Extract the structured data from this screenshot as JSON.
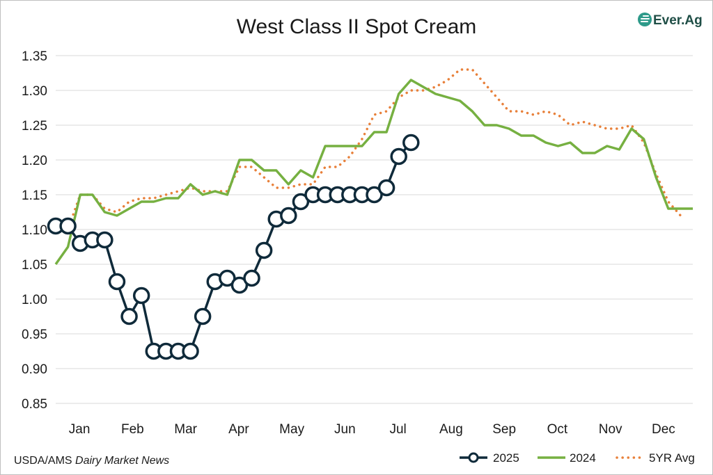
{
  "chart_data": {
    "type": "line",
    "title": "West Class II Spot Cream",
    "source": {
      "prefix": "USDA/AMS ",
      "emphasis": "Dairy Market News"
    },
    "logo": {
      "text": "Ever.Ag",
      "icon": "ever-ag-logo-icon"
    },
    "ylim": [
      0.85,
      1.35
    ],
    "y_ticks": [
      "0.85",
      "0.90",
      "0.95",
      "1.00",
      "1.05",
      "1.10",
      "1.15",
      "1.20",
      "1.25",
      "1.30",
      "1.35"
    ],
    "y_tick_values": [
      0.85,
      0.9,
      0.95,
      1.0,
      1.05,
      1.1,
      1.15,
      1.2,
      1.25,
      1.3,
      1.35
    ],
    "categories": [
      "Jan",
      "Feb",
      "Mar",
      "Apr",
      "May",
      "Jun",
      "Jul",
      "Aug",
      "Sep",
      "Oct",
      "Nov",
      "Dec"
    ],
    "x_domain": [
      0,
      52
    ],
    "grid": "horizontal",
    "legend_position": "bottom-right",
    "series": [
      {
        "name": "2025",
        "style": "line-circle-markers",
        "color": "#0f2a3a",
        "points": [
          [
            0,
            1.105
          ],
          [
            1,
            1.105
          ],
          [
            2,
            1.08
          ],
          [
            3,
            1.085
          ],
          [
            4,
            1.085
          ],
          [
            5,
            1.025
          ],
          [
            6,
            0.975
          ],
          [
            7,
            1.005
          ],
          [
            8,
            0.925
          ],
          [
            9,
            0.925
          ],
          [
            10,
            0.925
          ],
          [
            11,
            0.925
          ],
          [
            12,
            0.975
          ],
          [
            13,
            1.025
          ],
          [
            14,
            1.03
          ],
          [
            15,
            1.02
          ],
          [
            16,
            1.03
          ],
          [
            17,
            1.07
          ],
          [
            18,
            1.115
          ],
          [
            19,
            1.12
          ],
          [
            20,
            1.14
          ],
          [
            21,
            1.15
          ],
          [
            22,
            1.15
          ],
          [
            23,
            1.15
          ],
          [
            24,
            1.15
          ],
          [
            25,
            1.15
          ],
          [
            26,
            1.15
          ],
          [
            27,
            1.16
          ],
          [
            28,
            1.205
          ],
          [
            29,
            1.225
          ]
        ]
      },
      {
        "name": "2024",
        "style": "solid",
        "color": "#76b041",
        "points": [
          [
            0,
            1.05
          ],
          [
            1,
            1.075
          ],
          [
            2,
            1.15
          ],
          [
            3,
            1.15
          ],
          [
            4,
            1.125
          ],
          [
            5,
            1.12
          ],
          [
            6,
            1.13
          ],
          [
            7,
            1.14
          ],
          [
            8,
            1.14
          ],
          [
            9,
            1.145
          ],
          [
            10,
            1.145
          ],
          [
            11,
            1.165
          ],
          [
            12,
            1.15
          ],
          [
            13,
            1.155
          ],
          [
            14,
            1.15
          ],
          [
            15,
            1.2
          ],
          [
            16,
            1.2
          ],
          [
            17,
            1.185
          ],
          [
            18,
            1.185
          ],
          [
            19,
            1.165
          ],
          [
            20,
            1.185
          ],
          [
            21,
            1.175
          ],
          [
            22,
            1.22
          ],
          [
            23,
            1.22
          ],
          [
            24,
            1.22
          ],
          [
            25,
            1.22
          ],
          [
            26,
            1.24
          ],
          [
            27,
            1.24
          ],
          [
            28,
            1.295
          ],
          [
            29,
            1.315
          ],
          [
            30,
            1.305
          ],
          [
            31,
            1.295
          ],
          [
            32,
            1.29
          ],
          [
            33,
            1.285
          ],
          [
            34,
            1.27
          ],
          [
            35,
            1.25
          ],
          [
            36,
            1.25
          ],
          [
            37,
            1.245
          ],
          [
            38,
            1.235
          ],
          [
            39,
            1.235
          ],
          [
            40,
            1.225
          ],
          [
            41,
            1.22
          ],
          [
            42,
            1.225
          ],
          [
            43,
            1.21
          ],
          [
            44,
            1.21
          ],
          [
            45,
            1.22
          ],
          [
            46,
            1.215
          ],
          [
            47,
            1.245
          ],
          [
            48,
            1.23
          ],
          [
            49,
            1.175
          ],
          [
            50,
            1.13
          ],
          [
            51,
            1.13
          ],
          [
            52,
            1.13
          ]
        ]
      },
      {
        "name": "5YR Avg",
        "style": "dotted",
        "color": "#e8803a",
        "points": [
          [
            0,
            1.1
          ],
          [
            1,
            1.1
          ],
          [
            2,
            1.15
          ],
          [
            3,
            1.15
          ],
          [
            4,
            1.13
          ],
          [
            5,
            1.125
          ],
          [
            6,
            1.14
          ],
          [
            7,
            1.145
          ],
          [
            8,
            1.145
          ],
          [
            9,
            1.15
          ],
          [
            10,
            1.155
          ],
          [
            11,
            1.16
          ],
          [
            12,
            1.155
          ],
          [
            13,
            1.155
          ],
          [
            14,
            1.155
          ],
          [
            15,
            1.19
          ],
          [
            16,
            1.19
          ],
          [
            17,
            1.175
          ],
          [
            18,
            1.16
          ],
          [
            19,
            1.16
          ],
          [
            20,
            1.165
          ],
          [
            21,
            1.165
          ],
          [
            22,
            1.19
          ],
          [
            23,
            1.19
          ],
          [
            24,
            1.205
          ],
          [
            25,
            1.23
          ],
          [
            26,
            1.265
          ],
          [
            27,
            1.27
          ],
          [
            28,
            1.29
          ],
          [
            29,
            1.3
          ],
          [
            30,
            1.3
          ],
          [
            31,
            1.305
          ],
          [
            32,
            1.315
          ],
          [
            33,
            1.33
          ],
          [
            34,
            1.33
          ],
          [
            35,
            1.31
          ],
          [
            36,
            1.29
          ],
          [
            37,
            1.27
          ],
          [
            38,
            1.27
          ],
          [
            39,
            1.265
          ],
          [
            40,
            1.27
          ],
          [
            41,
            1.265
          ],
          [
            42,
            1.25
          ],
          [
            43,
            1.255
          ],
          [
            44,
            1.25
          ],
          [
            45,
            1.245
          ],
          [
            46,
            1.245
          ],
          [
            47,
            1.25
          ],
          [
            48,
            1.225
          ],
          [
            49,
            1.18
          ],
          [
            50,
            1.14
          ],
          [
            51,
            1.12
          ]
        ]
      }
    ]
  }
}
